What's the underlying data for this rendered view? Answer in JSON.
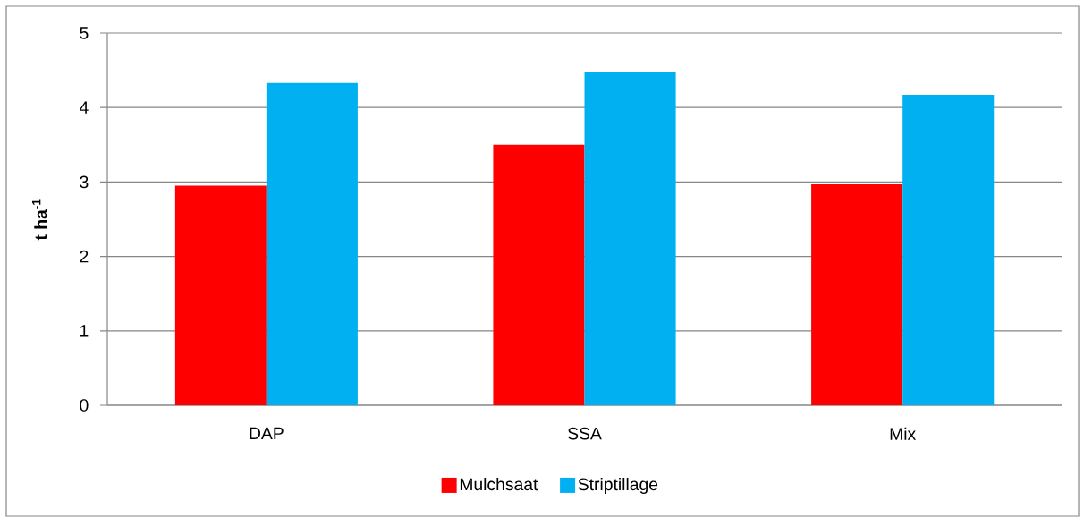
{
  "chart_data": {
    "type": "bar",
    "ylabel": "t ha$^{-1}$",
    "categories": [
      "DAP",
      "SSA",
      "Mix"
    ],
    "series": [
      {
        "name": "Mulchsaat",
        "color": "#ff0000",
        "values": [
          2.95,
          3.5,
          2.97
        ]
      },
      {
        "name": "Striptillage",
        "color": "#00b0f0",
        "values": [
          4.33,
          4.48,
          4.17
        ]
      }
    ],
    "ylim": [
      0,
      5
    ],
    "yticks": [
      0,
      1,
      2,
      3,
      4,
      5
    ],
    "grid": "y",
    "legend": "bottom"
  }
}
